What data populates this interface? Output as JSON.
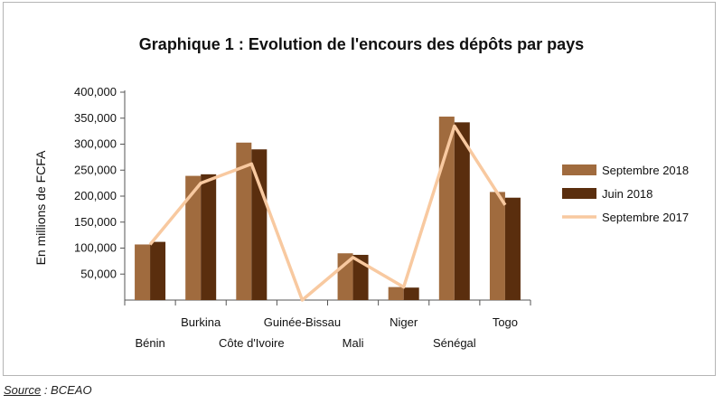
{
  "chart_data": {
    "type": "bar",
    "title": "Graphique 1 : Evolution de l'encours des dépôts par pays",
    "ylabel": "En millions de FCFA",
    "xlabel": "",
    "ylim": [
      0,
      400000
    ],
    "yticks": [
      "50,000",
      "100,000",
      "150,000",
      "200,000",
      "250,000",
      "300,000",
      "350,000",
      "400,000"
    ],
    "ytick_values": [
      50000,
      100000,
      150000,
      200000,
      250000,
      300000,
      350000,
      400000
    ],
    "categories": [
      "Bénin",
      "Burkina",
      "Côte d'Ivoire",
      "Guinée-Bissau",
      "Mali",
      "Niger",
      "Sénégal",
      "Togo"
    ],
    "category_label_row": [
      "low",
      "high",
      "low",
      "high",
      "low",
      "high",
      "low",
      "high"
    ],
    "series": [
      {
        "name": "Septembre 2018",
        "kind": "bar",
        "color": "#a06b3e",
        "values": [
          107000,
          239000,
          303000,
          0,
          90000,
          25000,
          353000,
          208000
        ]
      },
      {
        "name": "Juin 2018",
        "kind": "bar",
        "color": "#5a2e0e",
        "values": [
          112000,
          242000,
          290000,
          0,
          87000,
          24000,
          342000,
          197000
        ]
      },
      {
        "name": "Septembre 2017",
        "kind": "line",
        "color": "#f8c9a0",
        "values": [
          107000,
          225000,
          262000,
          0,
          82000,
          25000,
          335000,
          183000
        ]
      }
    ],
    "grid": false,
    "legend": "right"
  },
  "source": {
    "label": "Source",
    "text": " : BCEAO"
  }
}
